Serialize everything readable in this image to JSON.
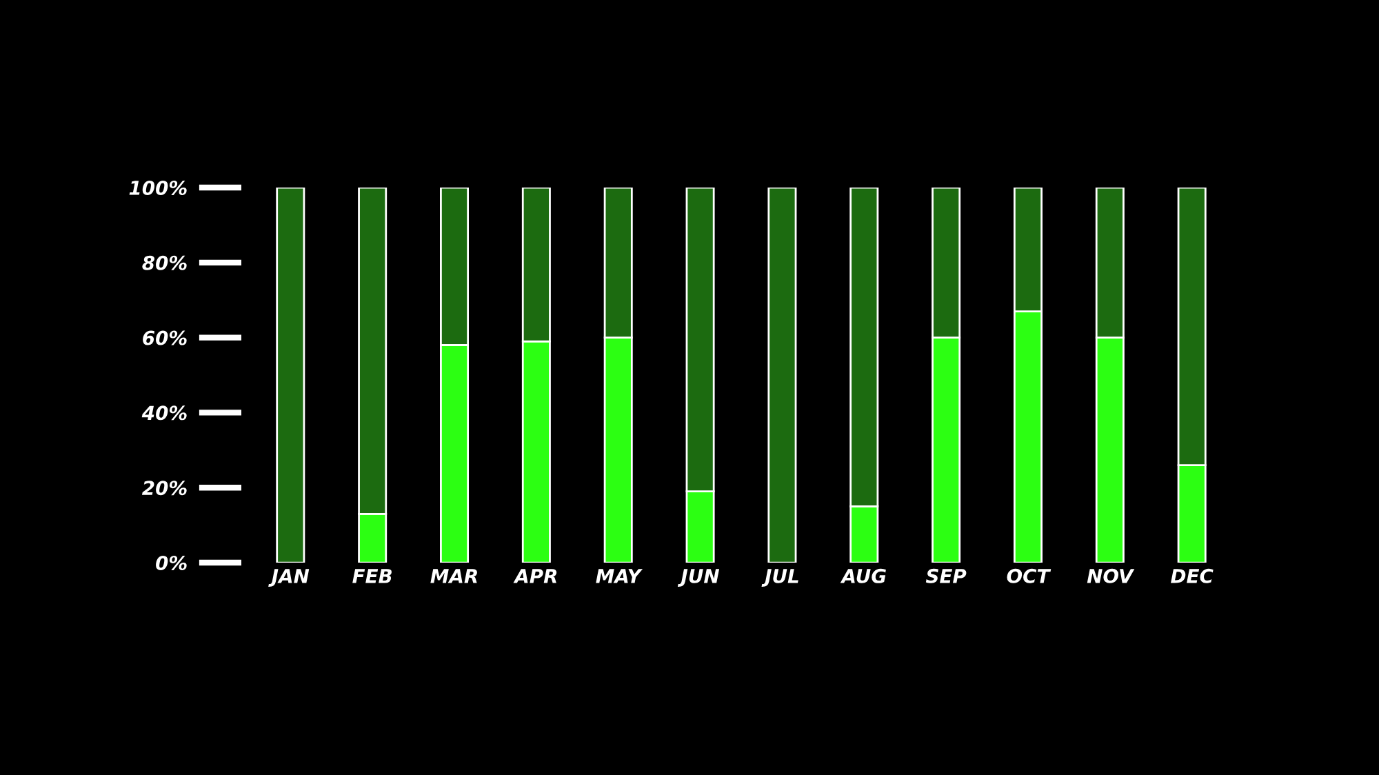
{
  "chart_data": {
    "type": "bar",
    "stacked": true,
    "categories": [
      "JAN",
      "FEB",
      "MAR",
      "APR",
      "MAY",
      "JUN",
      "JUL",
      "AUG",
      "SEP",
      "OCT",
      "NOV",
      "DEC"
    ],
    "series": [
      {
        "color": "#2cff12",
        "values": [
          0,
          13,
          58,
          59,
          60,
          19,
          0,
          15,
          60,
          67,
          60,
          26
        ]
      },
      {
        "color": "#1c6b10",
        "values": [
          100,
          87,
          42,
          41,
          40,
          81,
          100,
          85,
          40,
          33,
          40,
          74
        ]
      }
    ],
    "ylim": [
      0,
      100
    ],
    "yticks": [
      {
        "value": 0,
        "label": "0%"
      },
      {
        "value": 20,
        "label": "20%"
      },
      {
        "value": 40,
        "label": "40%"
      },
      {
        "value": 60,
        "label": "60%"
      },
      {
        "value": 80,
        "label": "80%"
      },
      {
        "value": 100,
        "label": "100%"
      }
    ],
    "grid": false
  }
}
